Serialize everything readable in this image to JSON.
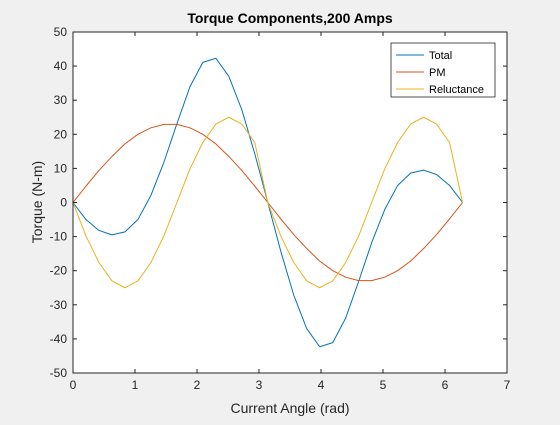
{
  "chart_data": {
    "type": "line",
    "title": "Torque Components,200 Amps",
    "xlabel": "Current Angle (rad)",
    "ylabel": "Torque (N-m)",
    "xlim": [
      0,
      7
    ],
    "ylim": [
      -50,
      50
    ],
    "xticks": [
      0,
      1,
      2,
      3,
      4,
      5,
      6,
      7
    ],
    "yticks": [
      -50,
      -40,
      -30,
      -20,
      -10,
      0,
      10,
      20,
      30,
      40,
      50
    ],
    "grid": false,
    "legend_position": "top-right",
    "x": [
      0,
      0.209,
      0.419,
      0.628,
      0.838,
      1.047,
      1.257,
      1.466,
      1.676,
      1.885,
      2.094,
      2.304,
      2.513,
      2.723,
      2.932,
      3.142,
      3.351,
      3.561,
      3.77,
      3.979,
      4.189,
      4.398,
      4.608,
      4.817,
      5.027,
      5.236,
      5.445,
      5.655,
      5.864,
      6.074,
      6.283
    ],
    "series": [
      {
        "name": "Total",
        "color": "#0072BD",
        "values": [
          0,
          -5.0,
          -8.2,
          -9.5,
          -8.6,
          -5.0,
          2.1,
          11.8,
          23.1,
          33.9,
          41.1,
          42.3,
          37.0,
          27.2,
          14.3,
          0,
          -14.3,
          -27.2,
          -37.0,
          -42.3,
          -41.1,
          -33.9,
          -23.1,
          -11.8,
          -2.1,
          5.0,
          8.6,
          9.5,
          8.2,
          5.0,
          0
        ]
      },
      {
        "name": "PM",
        "color": "#D95319",
        "values": [
          0,
          4.8,
          9.4,
          13.5,
          17.2,
          20.0,
          21.9,
          22.9,
          22.9,
          21.9,
          20.0,
          17.2,
          13.5,
          9.4,
          4.8,
          0,
          -4.8,
          -9.4,
          -13.5,
          -17.2,
          -20.0,
          -21.9,
          -22.9,
          -22.9,
          -21.9,
          -20.0,
          -17.2,
          -13.5,
          -9.4,
          -4.8,
          0
        ]
      },
      {
        "name": "Reluctance",
        "color": "#EDB120",
        "values": [
          0,
          -9.8,
          -17.6,
          -23.0,
          -25.0,
          -23.0,
          -17.6,
          -9.8,
          0,
          9.8,
          17.6,
          23.0,
          25.0,
          23.0,
          17.6,
          0,
          -9.8,
          -17.6,
          -23.0,
          -25.0,
          -23.0,
          -17.6,
          -9.8,
          0,
          9.8,
          17.6,
          23.0,
          25.0,
          23.0,
          17.6,
          0
        ]
      }
    ]
  }
}
